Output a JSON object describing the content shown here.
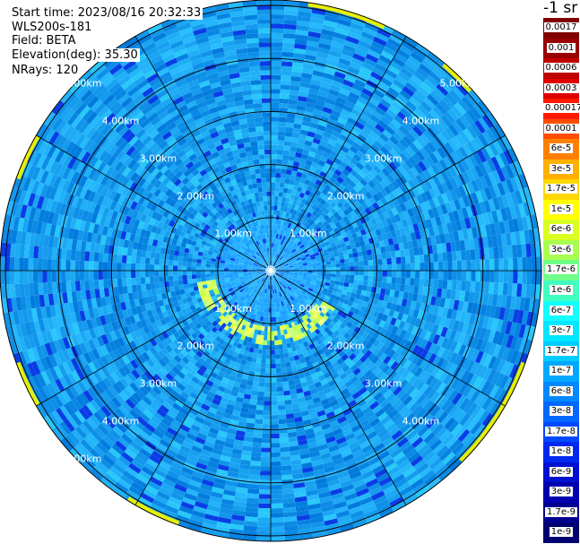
{
  "info": {
    "start_time": "Start time: 2023/08/16 20:32:33",
    "device": "WLS200s-181",
    "field": "Field: BETA",
    "elevation": "Elevation(deg): 35.30",
    "nrays": "NRays: 120"
  },
  "colorbar": {
    "unit": "-1 sr",
    "labels": [
      "0.0017",
      "0.001",
      "0.0006",
      "0.0003",
      "0.00017",
      "0.0001",
      "6e-5",
      "3e-5",
      "1.7e-5",
      "1e-5",
      "6e-6",
      "3e-6",
      "1.7e-6",
      "1e-6",
      "6e-7",
      "3e-7",
      "1.7e-7",
      "1e-7",
      "6e-8",
      "3e-8",
      "1.7e-8",
      "1e-8",
      "6e-9",
      "3e-9",
      "1.7e-9",
      "1e-9"
    ],
    "colors": [
      "#800000",
      "#9a0000",
      "#c00000",
      "#e00000",
      "#ff1a00",
      "#ff4d00",
      "#ff8000",
      "#ffb000",
      "#ffd800",
      "#ffff00",
      "#d8ff20",
      "#a8ff50",
      "#70ff88",
      "#40ffc0",
      "#10ffff",
      "#00e8ff",
      "#00ccff",
      "#00a8ff",
      "#0088ff",
      "#0068ff",
      "#0048ff",
      "#0028f0",
      "#0010d0",
      "#0000b0",
      "#000090",
      "#000070"
    ]
  },
  "chart_data": {
    "type": "heatmap",
    "projection": "polar-ppi",
    "field": "BETA",
    "elevation_deg": 35.3,
    "n_rays": 120,
    "range_rings_km": [
      1,
      2,
      3,
      4,
      5
    ],
    "ring_labels": [
      "1.00km",
      "2.00km",
      "3.00km",
      "4.00km",
      "5.00km"
    ],
    "spoke_angles_deg": [
      0,
      30,
      60,
      90,
      120,
      150,
      180,
      210,
      240,
      270,
      300,
      330
    ],
    "max_range_km": 5.1,
    "background_level": "3e-8 to 1e-7",
    "annotations": [
      {
        "feature": "enhanced backscatter arc",
        "range_km": [
          1.0,
          1.4
        ],
        "azimuth_deg": [
          120,
          260
        ],
        "level": "1e-6 to 1e-5"
      },
      {
        "feature": "edge returns",
        "range_km": [
          4.95,
          5.1
        ],
        "level": "1e-5"
      }
    ]
  }
}
